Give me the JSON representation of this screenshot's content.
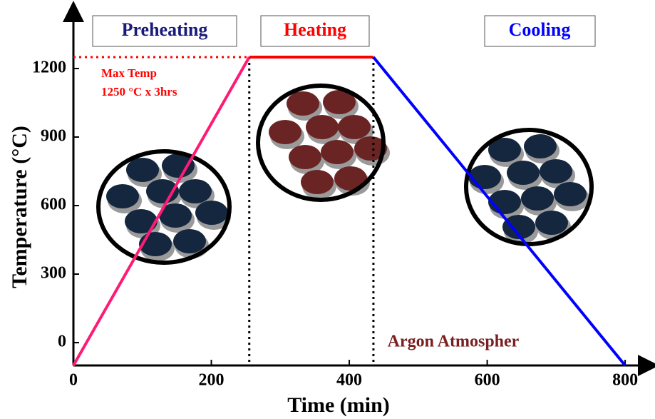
{
  "chart_data": {
    "type": "line",
    "xlabel": "Time (min)",
    "ylabel": "Temperature (°C)",
    "xlim": [
      0,
      834
    ],
    "ylim": [
      -100,
      1450
    ],
    "xticks": [
      0,
      200,
      400,
      600,
      800
    ],
    "yticks": [
      0,
      300,
      600,
      900,
      1200
    ],
    "series": [
      {
        "name": "Preheating",
        "color": "#ff1a75",
        "x": [
          0,
          255
        ],
        "values": [
          -100,
          1250
        ]
      },
      {
        "name": "Heating",
        "color": "#ff0000",
        "x": [
          255,
          435
        ],
        "values": [
          1250,
          1250
        ]
      },
      {
        "name": "Cooling",
        "color": "#0000ff",
        "x": [
          435,
          800
        ],
        "values": [
          1250,
          -100
        ]
      }
    ],
    "max_temp": 1250,
    "annotations": [
      "Max Temp",
      "1250 °C x 3hrs",
      "Argon Atmospher"
    ]
  }
}
